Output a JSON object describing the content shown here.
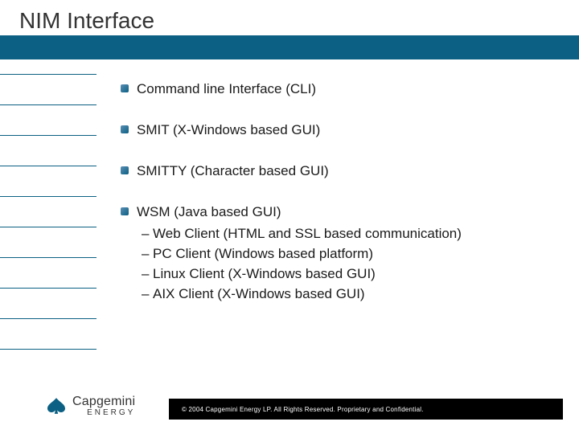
{
  "title": "NIM Interface",
  "bullets": [
    {
      "text": "Command line Interface (CLI)",
      "children": []
    },
    {
      "text": "SMIT (X-Windows based GUI)",
      "children": []
    },
    {
      "text": "SMITTY (Character based GUI)",
      "children": []
    },
    {
      "text": "WSM (Java based GUI)",
      "children": [
        "Web Client (HTML and SSL based communication)",
        "PC Client (Windows based platform)",
        "Linux Client (X-Windows based GUI)",
        "AIX Client (X-Windows based GUI)"
      ]
    }
  ],
  "footer": "© 2004 Capgemini Energy LP.  All Rights Reserved.  Proprietary and Confidential.",
  "logo": {
    "main": "Capgemini",
    "sub": "ENERGY"
  },
  "colors": {
    "band": "#0b6083",
    "text": "#1a1a1a",
    "footer_bg": "#000000",
    "footer_text": "#ffffff"
  },
  "hline_count": 10
}
